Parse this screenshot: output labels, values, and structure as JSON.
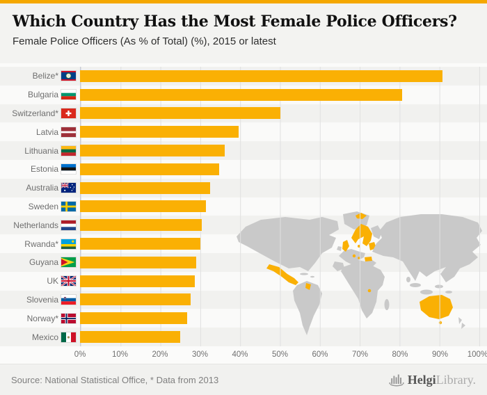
{
  "header": {
    "title": "Which Country Has the Most Female Police Officers?",
    "subtitle": "Female Police Officers (As % of Total) (%), 2015 or latest"
  },
  "chart_data": {
    "type": "bar",
    "orientation": "horizontal",
    "title": "Which Country Has the Most Female Police Officers?",
    "subtitle": "Female Police Officers (As % of Total) (%), 2015 or latest",
    "unit": "%",
    "xlim": [
      0,
      100
    ],
    "grid": true,
    "legend": "none",
    "x_ticks": [
      "0%",
      "10%",
      "20%",
      "30%",
      "40%",
      "50%",
      "60%",
      "70%",
      "80%",
      "90%",
      "100%"
    ],
    "categories": [
      "Belize*",
      "Bulgaria",
      "Switzerland*",
      "Latvia",
      "Lithuania",
      "Estonia",
      "Australia",
      "Sweden",
      "Netherlands",
      "Rwanda*",
      "Guyana",
      "UK",
      "Slovenia",
      "Norway*",
      "Mexico"
    ],
    "values": [
      90.6,
      80.6,
      50.1,
      39.7,
      36.1,
      34.8,
      32.5,
      31.4,
      30.4,
      30.0,
      29.0,
      28.7,
      27.7,
      26.7,
      25.1
    ],
    "flag_keys": [
      "belize",
      "bulgaria",
      "switzerland",
      "latvia",
      "lithuania",
      "estonia",
      "australia",
      "sweden",
      "netherlands",
      "rwanda",
      "guyana",
      "uk",
      "slovenia",
      "norway",
      "mexico"
    ],
    "bar_color": "#FAB004",
    "background_map": {
      "description": "gray world map watermark with ranked countries highlighted in orange",
      "gray": "#C9C9C9",
      "highlight": "#FAB004"
    }
  },
  "footer": {
    "source": "Source: National Statistical Office, * Data from 2013",
    "brand_bold": "Helgi",
    "brand_light": "Library."
  },
  "colors": {
    "accent": "#F5A800",
    "bar": "#FAB004",
    "map_gray": "#C9C9C9",
    "grid_line": "#E0E0E0",
    "axis_line": "#C9CDD8",
    "stripe_odd": "#F1F1EF",
    "stripe_even": "#FAFAF9"
  }
}
